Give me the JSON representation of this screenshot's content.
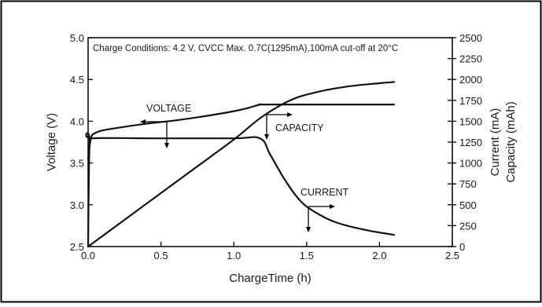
{
  "chart_data": {
    "type": "line",
    "title": "",
    "annotation": "Charge Conditions: 4.2 V, CVCC Max. 0.7C(1295mA),100mA cut-off at 20°C",
    "xlabel": "ChargeTime (h)",
    "ylabel_left": "Voltage (V)",
    "ylabel_right_1": "Current (mA)",
    "ylabel_right_2": "Capacity (mAh)",
    "xlim": [
      0,
      2.5
    ],
    "ylim_left": [
      2.5,
      5.0
    ],
    "ylim_right": [
      0,
      2500
    ],
    "x_ticks": [
      "0.0",
      "0.5",
      "1.0",
      "1.5",
      "2.0",
      "2.5"
    ],
    "y_left_ticks": [
      "2.5",
      "3.0",
      "3.5",
      "4.0",
      "4.5",
      "5.0"
    ],
    "y_right_ticks": [
      "0",
      "250",
      "500",
      "750",
      "1000",
      "1250",
      "1500",
      "1750",
      "2000",
      "2250",
      "2500"
    ],
    "grid": false,
    "series": [
      {
        "name": "VOLTAGE",
        "axis": "left",
        "x": [
          0.0,
          0.02,
          0.05,
          0.1,
          0.2,
          0.4,
          0.6,
          0.8,
          1.0,
          1.1,
          1.18,
          1.2,
          1.5,
          1.8,
          2.1
        ],
        "y": [
          3.55,
          3.8,
          3.86,
          3.89,
          3.92,
          3.97,
          4.01,
          4.06,
          4.12,
          4.16,
          4.2,
          4.2,
          4.2,
          4.2,
          4.2
        ]
      },
      {
        "name": "CAPACITY",
        "axis": "right",
        "x": [
          0.0,
          0.25,
          0.5,
          0.75,
          1.0,
          1.2,
          1.4,
          1.6,
          1.8,
          2.0,
          2.1
        ],
        "y": [
          0,
          320,
          640,
          960,
          1280,
          1560,
          1760,
          1860,
          1920,
          1955,
          1970
        ]
      },
      {
        "name": "CURRENT",
        "axis": "right",
        "x": [
          0.0,
          0.01,
          0.03,
          0.5,
          1.0,
          1.18,
          1.25,
          1.35,
          1.45,
          1.55,
          1.7,
          1.9,
          2.1
        ],
        "y": [
          0,
          1240,
          1295,
          1295,
          1295,
          1295,
          1100,
          800,
          560,
          420,
          290,
          200,
          140
        ]
      }
    ],
    "labels": [
      "VOLTAGE",
      "CAPACITY",
      "CURRENT"
    ]
  }
}
